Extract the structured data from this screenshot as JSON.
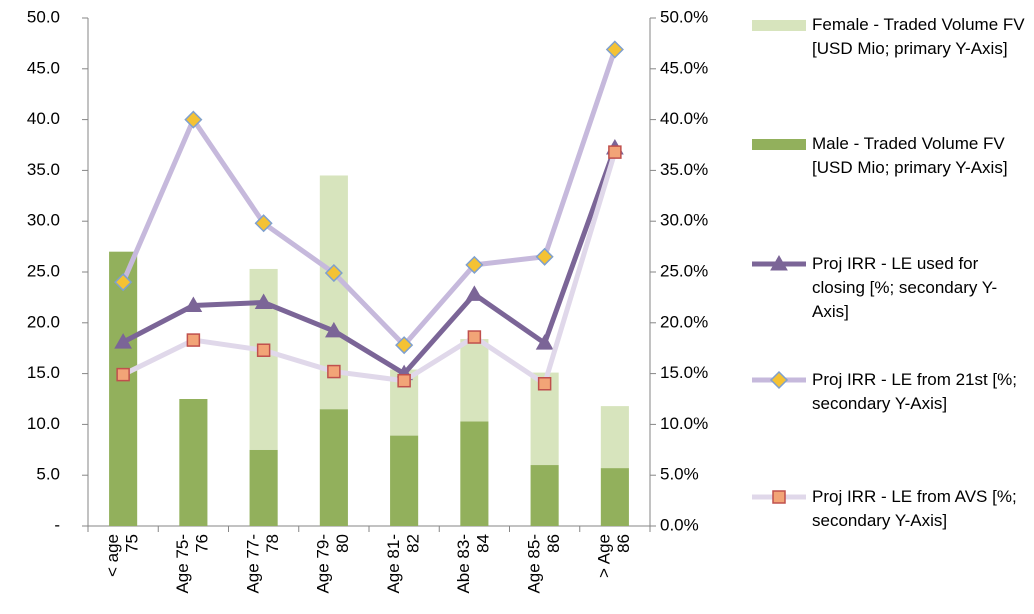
{
  "chart_data": {
    "type": "bar",
    "stacked": true,
    "categories": [
      "< age\n75",
      "Age 75-\n76",
      "Age 77-\n78",
      "Age 79-\n80",
      "Age 81-\n82",
      "Abe 83-\n84",
      "Age 85-\n86",
      "> Age\n86"
    ],
    "series": [
      {
        "name": "Male - Traded Volume FV [USD Mio; primary Y-Axis]",
        "type": "bar",
        "color": "#92b05c",
        "values": [
          27.0,
          12.5,
          7.5,
          11.5,
          8.9,
          10.3,
          6.0,
          5.7
        ]
      },
      {
        "name": "Female - Traded Volume FV [USD Mio; primary Y-Axis]",
        "type": "bar",
        "color": "#d7e4bd",
        "values": [
          0,
          0,
          17.8,
          23.0,
          6.5,
          8.1,
          9.1,
          6.1
        ]
      },
      {
        "name": "Proj IRR - LE used for closing [%; secondary Y-Axis]",
        "type": "line",
        "axis": "y2",
        "color": "#7b6597",
        "marker": "triangle",
        "marker_color": "#7b6597",
        "values": [
          18.1,
          21.7,
          22.0,
          19.2,
          15.0,
          22.8,
          18.0,
          37.2
        ]
      },
      {
        "name": "Proj IRR - LE from 21st  [%; secondary Y-Axis]",
        "type": "line",
        "axis": "y2",
        "color": "#c6b9dc",
        "marker": "diamond",
        "marker_color": "#f4c234",
        "values": [
          24.0,
          40.0,
          29.8,
          24.9,
          17.8,
          25.7,
          26.5,
          46.9
        ]
      },
      {
        "name": "Proj IRR - LE from AVS [%; secondary Y-Axis]",
        "type": "line",
        "axis": "y2",
        "color": "#e0d8ea",
        "marker": "square",
        "marker_color": "#f2a477",
        "values": [
          14.9,
          18.3,
          17.3,
          15.2,
          14.3,
          18.6,
          14.0,
          36.8
        ]
      }
    ],
    "legend_order": [
      1,
      0,
      2,
      3,
      4
    ],
    "ylim": [
      0,
      50
    ],
    "yticks": [
      {
        "value": 0,
        "label": "-"
      },
      {
        "value": 5,
        "label": "5.0"
      },
      {
        "value": 10,
        "label": "10.0"
      },
      {
        "value": 15,
        "label": "15.0"
      },
      {
        "value": 20,
        "label": "20.0"
      },
      {
        "value": 25,
        "label": "25.0"
      },
      {
        "value": 30,
        "label": "30.0"
      },
      {
        "value": 35,
        "label": "35.0"
      },
      {
        "value": 40,
        "label": "40.0"
      },
      {
        "value": 45,
        "label": "45.0"
      },
      {
        "value": 50,
        "label": "50.0"
      }
    ],
    "y2lim": [
      0,
      50
    ],
    "y2ticks": [
      {
        "value": 0,
        "label": "0.0%"
      },
      {
        "value": 5,
        "label": "5.0%"
      },
      {
        "value": 10,
        "label": "10.0%"
      },
      {
        "value": 15,
        "label": "15.0%"
      },
      {
        "value": 20,
        "label": "20.0%"
      },
      {
        "value": 25,
        "label": "25.0%"
      },
      {
        "value": 30,
        "label": "30.0%"
      },
      {
        "value": 35,
        "label": "35.0%"
      },
      {
        "value": 40,
        "label": "40.0%"
      },
      {
        "value": 45,
        "label": "45.0%"
      },
      {
        "value": 50,
        "label": "50.0%"
      }
    ],
    "grid": false
  }
}
